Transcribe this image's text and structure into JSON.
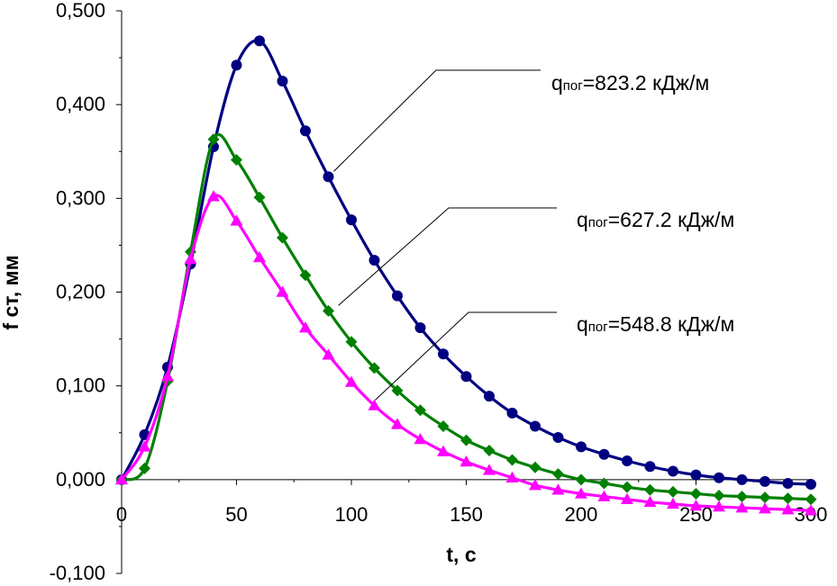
{
  "chart_data": {
    "type": "line",
    "title": "",
    "xlabel": "t, с",
    "ylabel": "f ст, мм",
    "xlim": [
      0,
      300
    ],
    "ylim": [
      -0.1,
      0.5
    ],
    "x_ticks": [
      "0",
      "50",
      "100",
      "150",
      "200",
      "250",
      "300"
    ],
    "y_ticks": [
      "-0,100",
      "0,000",
      "0,100",
      "0,200",
      "0,300",
      "0,400",
      "0,500"
    ],
    "grid": false,
    "legend": "none",
    "series": [
      {
        "label_prefix": "q",
        "label_sub": "пог",
        "label_value": "=823.2 кДж/м",
        "color": "#000080",
        "marker": "circle",
        "x": [
          0,
          10,
          20,
          30,
          40,
          50,
          60,
          70,
          80,
          90,
          100,
          110,
          120,
          130,
          140,
          150,
          160,
          170,
          180,
          190,
          200,
          210,
          220,
          230,
          240,
          250,
          260,
          270,
          280,
          290,
          300
        ],
        "values": [
          0,
          0.048,
          0.12,
          0.23,
          0.355,
          0.442,
          0.468,
          0.425,
          0.372,
          0.323,
          0.277,
          0.234,
          0.196,
          0.162,
          0.134,
          0.11,
          0.089,
          0.071,
          0.057,
          0.045,
          0.035,
          0.027,
          0.02,
          0.014,
          0.009,
          0.005,
          0.002,
          0,
          -0.002,
          -0.004,
          -0.005
        ]
      },
      {
        "label_prefix": "q",
        "label_sub": "пог",
        "label_value": "=627.2 кДж/м",
        "color": "#008000",
        "marker": "diamond",
        "x": [
          0,
          10,
          20,
          30,
          40,
          50,
          60,
          70,
          80,
          90,
          100,
          110,
          120,
          130,
          140,
          150,
          160,
          170,
          180,
          190,
          200,
          210,
          220,
          230,
          240,
          250,
          260,
          270,
          280,
          290,
          300
        ],
        "values": [
          0,
          0.012,
          0.105,
          0.243,
          0.363,
          0.341,
          0.301,
          0.258,
          0.218,
          0.18,
          0.147,
          0.119,
          0.095,
          0.074,
          0.057,
          0.042,
          0.031,
          0.021,
          0.013,
          0.006,
          0,
          -0.004,
          -0.008,
          -0.011,
          -0.013,
          -0.015,
          -0.017,
          -0.018,
          -0.019,
          -0.02,
          -0.021
        ]
      },
      {
        "label_prefix": "q",
        "label_sub": "пог",
        "label_value": "=548.8 кДж/м",
        "color": "#ff00ff",
        "marker": "triangle",
        "x": [
          0,
          10,
          20,
          30,
          40,
          50,
          60,
          70,
          80,
          90,
          100,
          110,
          120,
          130,
          140,
          150,
          160,
          170,
          180,
          190,
          200,
          210,
          220,
          230,
          240,
          250,
          260,
          270,
          280,
          290,
          300
        ],
        "values": [
          0,
          0.035,
          0.11,
          0.235,
          0.302,
          0.276,
          0.237,
          0.2,
          0.162,
          0.133,
          0.104,
          0.079,
          0.059,
          0.043,
          0.03,
          0.019,
          0.01,
          0.002,
          -0.006,
          -0.011,
          -0.015,
          -0.018,
          -0.021,
          -0.024,
          -0.026,
          -0.028,
          -0.029,
          -0.03,
          -0.031,
          -0.032,
          -0.033
        ]
      }
    ]
  }
}
